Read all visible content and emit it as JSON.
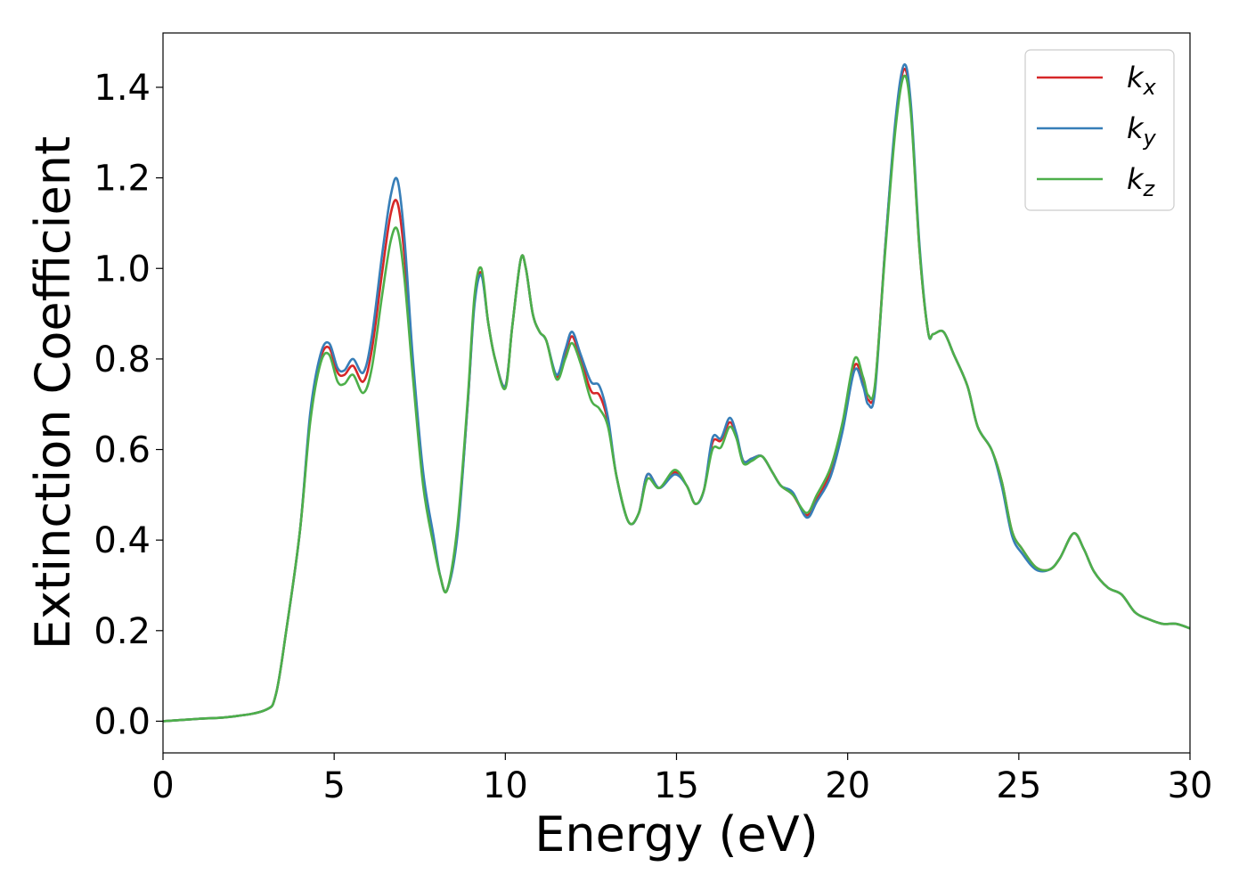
{
  "chart_data": {
    "type": "line",
    "xlabel": "Energy (eV)",
    "ylabel": "Extinction Coefficient",
    "xlim": [
      0,
      30
    ],
    "ylim": [
      -0.07,
      1.52
    ],
    "xticks": [
      "0",
      "5",
      "10",
      "15",
      "20",
      "25",
      "30"
    ],
    "yticks": [
      "0.0",
      "0.2",
      "0.4",
      "0.6",
      "0.8",
      "1.0",
      "1.2",
      "1.4"
    ],
    "grid": false,
    "legend_position": "top-right",
    "x": [
      0,
      1,
      2,
      3,
      3.3,
      3.6,
      4.0,
      4.3,
      4.6,
      4.85,
      5.1,
      5.3,
      5.55,
      5.85,
      6.1,
      6.4,
      6.65,
      6.85,
      7.05,
      7.3,
      7.6,
      7.9,
      8.1,
      8.3,
      8.6,
      8.9,
      9.1,
      9.3,
      9.5,
      9.7,
      10.0,
      10.2,
      10.45,
      10.6,
      10.8,
      11.0,
      11.2,
      11.5,
      11.75,
      11.95,
      12.2,
      12.5,
      12.75,
      13.0,
      13.25,
      13.6,
      13.9,
      14.15,
      14.5,
      14.95,
      15.3,
      15.55,
      15.8,
      16.05,
      16.3,
      16.55,
      16.75,
      16.95,
      17.2,
      17.5,
      17.8,
      18.05,
      18.4,
      18.8,
      19.1,
      19.5,
      19.85,
      20.2,
      20.45,
      20.6,
      20.8,
      21.1,
      21.4,
      21.65,
      21.85,
      22.1,
      22.35,
      22.5,
      22.8,
      23.1,
      23.5,
      23.8,
      24.2,
      24.5,
      24.8,
      25.1,
      25.5,
      25.9,
      26.2,
      26.6,
      26.9,
      27.2,
      27.6,
      28.0,
      28.4,
      28.8,
      29.2,
      29.6,
      30.0
    ],
    "series": [
      {
        "name": "k",
        "subscript": "x",
        "color": "#d62728",
        "values": [
          0.0,
          0.005,
          0.01,
          0.025,
          0.06,
          0.2,
          0.42,
          0.67,
          0.8,
          0.825,
          0.77,
          0.765,
          0.785,
          0.75,
          0.82,
          0.99,
          1.12,
          1.145,
          1.03,
          0.78,
          0.53,
          0.4,
          0.32,
          0.29,
          0.42,
          0.7,
          0.93,
          0.99,
          0.88,
          0.8,
          0.74,
          0.87,
          1.02,
          1.0,
          0.9,
          0.86,
          0.84,
          0.76,
          0.81,
          0.85,
          0.8,
          0.73,
          0.72,
          0.66,
          0.54,
          0.44,
          0.46,
          0.545,
          0.515,
          0.55,
          0.52,
          0.48,
          0.51,
          0.615,
          0.62,
          0.66,
          0.63,
          0.575,
          0.58,
          0.585,
          0.55,
          0.52,
          0.5,
          0.455,
          0.49,
          0.55,
          0.65,
          0.785,
          0.75,
          0.71,
          0.74,
          1.05,
          1.32,
          1.44,
          1.35,
          1.04,
          0.86,
          0.855,
          0.86,
          0.81,
          0.74,
          0.65,
          0.6,
          0.53,
          0.42,
          0.38,
          0.34,
          0.335,
          0.36,
          0.415,
          0.38,
          0.33,
          0.295,
          0.28,
          0.24,
          0.225,
          0.215,
          0.215,
          0.205
        ]
      },
      {
        "name": "k",
        "subscript": "y",
        "color": "#377eb8",
        "values": [
          0.0,
          0.005,
          0.01,
          0.025,
          0.06,
          0.2,
          0.42,
          0.68,
          0.81,
          0.835,
          0.78,
          0.775,
          0.8,
          0.77,
          0.85,
          1.03,
          1.16,
          1.195,
          1.07,
          0.8,
          0.55,
          0.41,
          0.32,
          0.29,
          0.41,
          0.7,
          0.92,
          0.985,
          0.88,
          0.8,
          0.74,
          0.87,
          1.02,
          1.0,
          0.9,
          0.86,
          0.84,
          0.765,
          0.82,
          0.86,
          0.81,
          0.75,
          0.74,
          0.67,
          0.54,
          0.44,
          0.46,
          0.545,
          0.515,
          0.545,
          0.52,
          0.48,
          0.51,
          0.625,
          0.625,
          0.67,
          0.635,
          0.575,
          0.58,
          0.585,
          0.55,
          0.52,
          0.505,
          0.45,
          0.485,
          0.54,
          0.64,
          0.775,
          0.74,
          0.7,
          0.73,
          1.05,
          1.33,
          1.45,
          1.36,
          1.05,
          0.86,
          0.855,
          0.86,
          0.81,
          0.74,
          0.65,
          0.6,
          0.52,
          0.41,
          0.37,
          0.335,
          0.335,
          0.36,
          0.415,
          0.38,
          0.33,
          0.295,
          0.28,
          0.24,
          0.225,
          0.215,
          0.215,
          0.205
        ]
      },
      {
        "name": "k",
        "subscript": "z",
        "color": "#4daf4a",
        "values": [
          0.0,
          0.005,
          0.01,
          0.025,
          0.06,
          0.2,
          0.42,
          0.66,
          0.79,
          0.81,
          0.75,
          0.745,
          0.765,
          0.725,
          0.78,
          0.94,
          1.06,
          1.085,
          0.98,
          0.76,
          0.52,
          0.39,
          0.32,
          0.29,
          0.43,
          0.71,
          0.94,
          1.0,
          0.88,
          0.8,
          0.735,
          0.87,
          1.02,
          1.0,
          0.9,
          0.86,
          0.84,
          0.755,
          0.8,
          0.835,
          0.79,
          0.71,
          0.69,
          0.65,
          0.54,
          0.44,
          0.46,
          0.535,
          0.515,
          0.555,
          0.52,
          0.48,
          0.51,
          0.6,
          0.605,
          0.65,
          0.625,
          0.57,
          0.575,
          0.585,
          0.55,
          0.52,
          0.5,
          0.46,
          0.5,
          0.56,
          0.66,
          0.8,
          0.76,
          0.72,
          0.745,
          1.04,
          1.31,
          1.425,
          1.34,
          1.04,
          0.86,
          0.855,
          0.86,
          0.81,
          0.74,
          0.65,
          0.6,
          0.53,
          0.42,
          0.38,
          0.34,
          0.335,
          0.36,
          0.415,
          0.38,
          0.33,
          0.295,
          0.28,
          0.24,
          0.225,
          0.215,
          0.215,
          0.205
        ]
      }
    ]
  }
}
